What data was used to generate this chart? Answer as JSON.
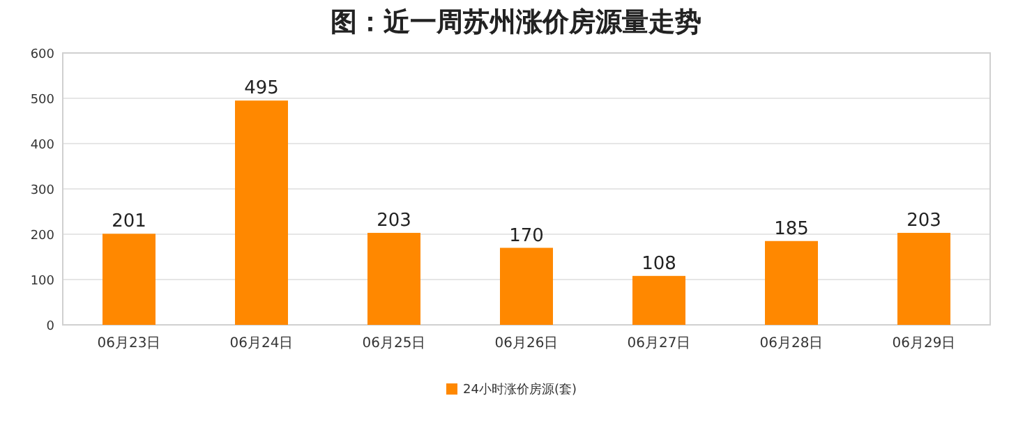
{
  "chart_data": {
    "type": "bar",
    "title": "图：近一周苏州涨价房源量走势",
    "categories": [
      "06月23日",
      "06月24日",
      "06月25日",
      "06月26日",
      "06月27日",
      "06月28日",
      "06月29日"
    ],
    "series": [
      {
        "name": "24小时涨价房源(套)",
        "color": "#ff8800",
        "values": [
          201,
          495,
          203,
          170,
          108,
          185,
          203
        ]
      }
    ],
    "ylim": [
      0,
      600
    ],
    "yticks": [
      0,
      100,
      200,
      300,
      400,
      500,
      600
    ],
    "grid": "y",
    "legend": "bottom",
    "data_labels": true
  }
}
